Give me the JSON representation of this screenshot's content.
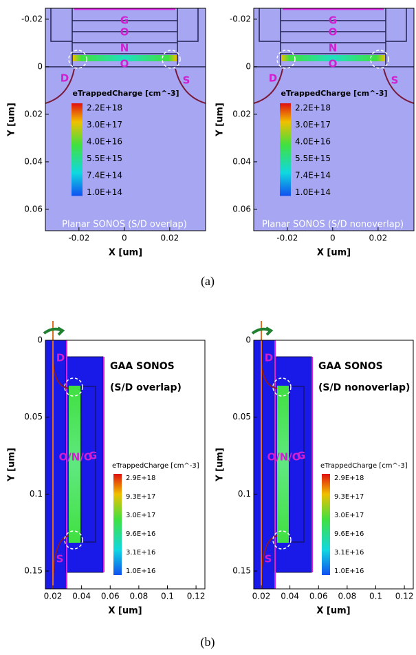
{
  "figure": {
    "panels": [
      {
        "kind": "planar",
        "xlabel": "X [um]",
        "ylabel": "Y [um]",
        "xlim": [
          -0.0348,
          0.0358
        ],
        "ylim": [
          -0.0246,
          0.069
        ],
        "xticks": [
          -0.02,
          0,
          0.02
        ],
        "yticks": [
          -0.02,
          0,
          0.02,
          0.04,
          0.06
        ],
        "legend_title": "eTrappedCharge [cm^-3]",
        "legend_labels": [
          "2.2E+18",
          "3.0E+17",
          "4.0E+16",
          "5.5E+15",
          "7.4E+14",
          "1.0E+14"
        ],
        "regions": [
          "G",
          "O",
          "N",
          "O",
          "D",
          "S"
        ],
        "caption": "Planar SONOS (S/D overlap)"
      },
      {
        "kind": "planar",
        "xlabel": "X [um]",
        "ylabel": "Y [um]",
        "xlim": [
          -0.0348,
          0.0358
        ],
        "ylim": [
          -0.0246,
          0.069
        ],
        "xticks": [
          -0.02,
          0,
          0.02
        ],
        "yticks": [
          -0.02,
          0,
          0.02,
          0.04,
          0.06
        ],
        "legend_title": "eTrappedCharge [cm^-3]",
        "legend_labels": [
          "2.2E+18",
          "3.0E+17",
          "4.0E+16",
          "5.5E+15",
          "7.4E+14",
          "1.0E+14"
        ],
        "regions": [
          "G",
          "O",
          "N",
          "O",
          "D",
          "S"
        ],
        "caption": "Planar SONOS (S/D nonoverlap)"
      },
      {
        "kind": "gaa",
        "xlabel": "X [um]",
        "ylabel": "Y [um]",
        "xlim": [
          0.0147,
          0.1262
        ],
        "ylim": [
          0,
          0.1616
        ],
        "xticks": [
          0.02,
          0.04,
          0.06,
          0.08,
          0.1,
          0.12
        ],
        "yticks": [
          0,
          0.05,
          0.1,
          0.15
        ],
        "legend_title": "eTrappedCharge [cm^-3]",
        "legend_labels": [
          "2.9E+18",
          "9.3E+17",
          "3.0E+17",
          "9.6E+16",
          "3.1E+16",
          "1.0E+16"
        ],
        "regions": [
          "D",
          "G",
          "O/N/O",
          "S"
        ],
        "caption_lines": [
          "GAA SONOS",
          "(S/D overlap)"
        ]
      },
      {
        "kind": "gaa",
        "xlabel": "X [um]",
        "ylabel": "Y [um]",
        "xlim": [
          0.0147,
          0.1262
        ],
        "ylim": [
          0,
          0.1616
        ],
        "xticks": [
          0.02,
          0.04,
          0.06,
          0.08,
          0.1,
          0.12
        ],
        "yticks": [
          0,
          0.05,
          0.1,
          0.15
        ],
        "legend_title": "eTrappedCharge [cm^-3]",
        "legend_labels": [
          "2.9E+18",
          "9.3E+17",
          "3.0E+17",
          "9.6E+16",
          "3.1E+16",
          "1.0E+16"
        ],
        "regions": [
          "D",
          "G",
          "O/N/O",
          "S"
        ],
        "caption_lines": [
          "GAA SONOS",
          "(S/D nonoverlap)"
        ]
      }
    ],
    "captions": [
      "(a)",
      "(b)"
    ]
  }
}
